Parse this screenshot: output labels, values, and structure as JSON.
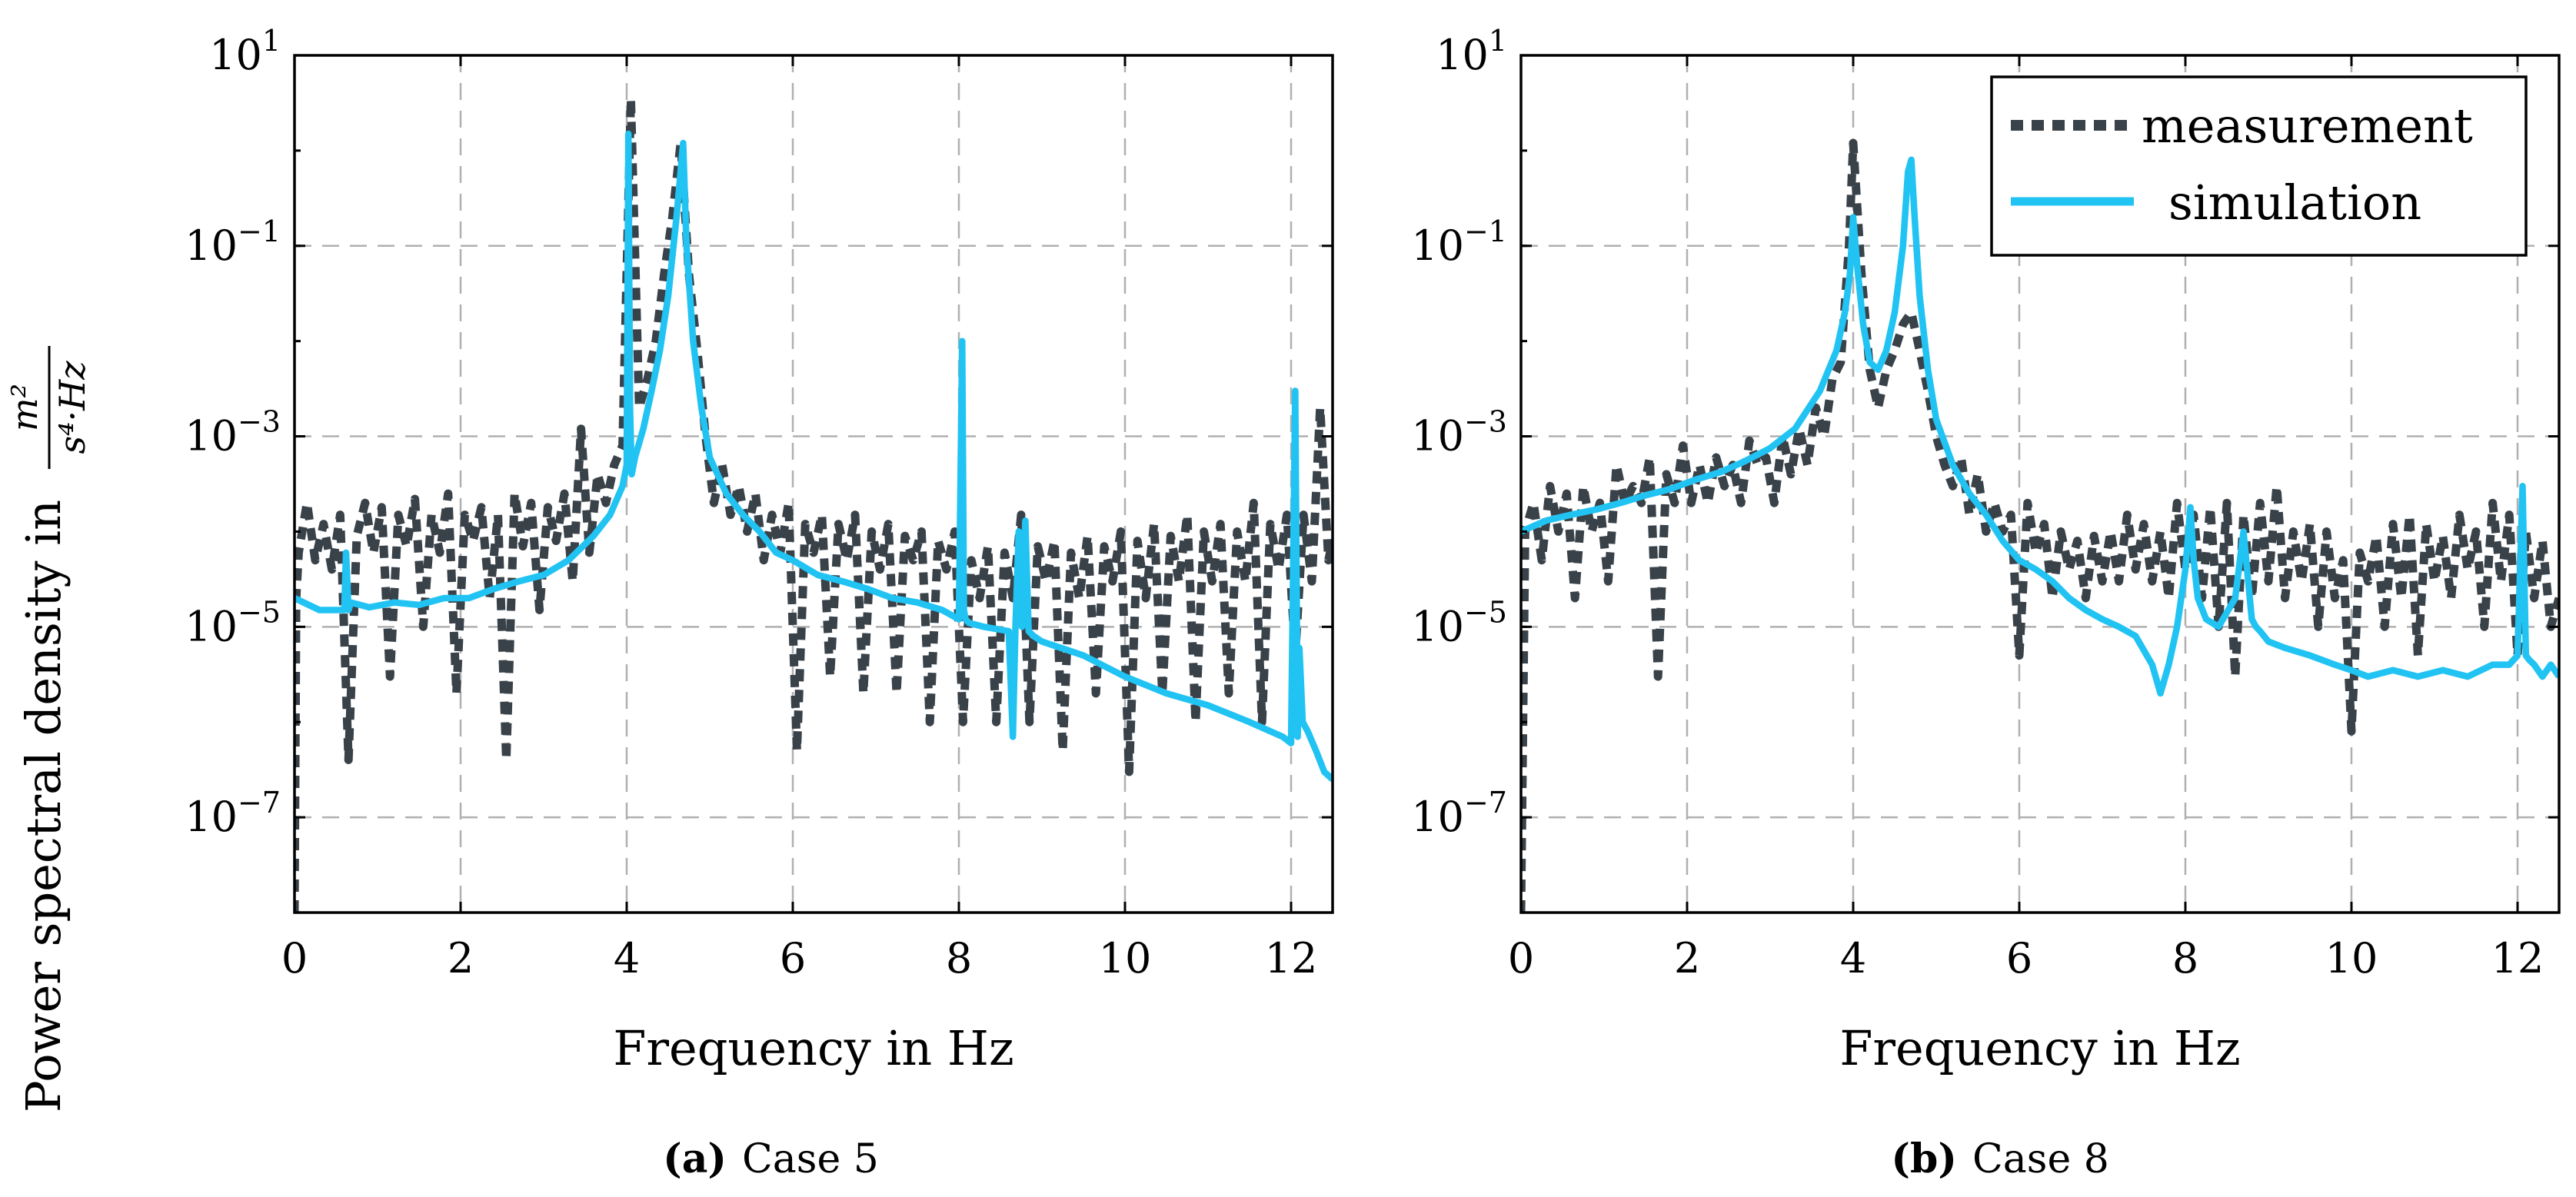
{
  "figure": {
    "ylabel": "Power spectral density in",
    "ylabel_unit_num": "m²",
    "ylabel_unit_den": "s⁴·Hz"
  },
  "legend": {
    "items": [
      {
        "label": "measurement",
        "color": "#394149",
        "style": "dotted"
      },
      {
        "label": "simulation",
        "color": "#21c3f3",
        "style": "solid"
      }
    ]
  },
  "chart_data": [
    {
      "type": "line",
      "panel": "a",
      "caption_label": "(a)",
      "caption_text": "Case 5",
      "xlabel": "Frequency in Hz",
      "ylabel": "Power spectral density in m²/(s⁴·Hz)",
      "xlim": [
        0,
        12.5
      ],
      "ylim": [
        1e-08,
        10
      ],
      "yscale": "log",
      "xticks": [
        0,
        2,
        4,
        6,
        8,
        10,
        12
      ],
      "yticks": [
        {
          "value": 10,
          "base": "10",
          "exp": "1"
        },
        {
          "value": 0.1,
          "base": "10",
          "exp": "−1"
        },
        {
          "value": 0.001,
          "base": "10",
          "exp": "−3"
        },
        {
          "value": 1e-05,
          "base": "10",
          "exp": "−5"
        },
        {
          "value": 1e-07,
          "base": "10",
          "exp": "−7"
        }
      ],
      "grid": true,
      "series": [
        {
          "name": "measurement",
          "color": "#394149",
          "x": [
            0,
            0.02,
            0.05,
            0.15,
            0.25,
            0.35,
            0.45,
            0.55,
            0.65,
            0.75,
            0.85,
            0.95,
            1.05,
            1.15,
            1.25,
            1.35,
            1.45,
            1.55,
            1.65,
            1.75,
            1.85,
            1.95,
            2.05,
            2.15,
            2.25,
            2.35,
            2.45,
            2.55,
            2.65,
            2.75,
            2.85,
            2.95,
            3.05,
            3.15,
            3.25,
            3.35,
            3.45,
            3.55,
            3.65,
            3.75,
            3.85,
            3.95,
            4.05,
            4.15,
            4.25,
            4.35,
            4.45,
            4.55,
            4.65,
            4.75,
            4.85,
            4.95,
            5.05,
            5.15,
            5.25,
            5.35,
            5.45,
            5.55,
            5.65,
            5.75,
            5.85,
            5.95,
            6.05,
            6.15,
            6.25,
            6.35,
            6.45,
            6.55,
            6.65,
            6.75,
            6.85,
            6.95,
            7.05,
            7.15,
            7.25,
            7.35,
            7.45,
            7.55,
            7.65,
            7.75,
            7.85,
            7.95,
            8.05,
            8.15,
            8.25,
            8.35,
            8.45,
            8.55,
            8.65,
            8.75,
            8.85,
            8.95,
            9.05,
            9.15,
            9.25,
            9.35,
            9.45,
            9.55,
            9.65,
            9.75,
            9.85,
            9.95,
            10.05,
            10.15,
            10.25,
            10.35,
            10.45,
            10.55,
            10.65,
            10.75,
            10.85,
            10.95,
            11.05,
            11.15,
            11.25,
            11.35,
            11.45,
            11.55,
            11.65,
            11.75,
            11.85,
            11.95,
            12.05,
            12.15,
            12.25,
            12.35,
            12.45,
            12.5
          ],
          "y": [
            1e-08,
            2e-05,
            6e-05,
            0.0002,
            5e-05,
            0.00012,
            4e-05,
            0.00015,
            4e-07,
            9e-05,
            0.0002,
            6e-05,
            0.00018,
            3e-06,
            0.00015,
            7e-05,
            0.00022,
            1e-05,
            0.00015,
            6e-05,
            0.00025,
            2e-06,
            0.00015,
            8e-05,
            0.00018,
            2e-05,
            0.00015,
            4e-07,
            0.00025,
            7e-05,
            0.0002,
            1.5e-05,
            0.00018,
            8e-05,
            0.00025,
            3e-05,
            0.0012,
            6e-05,
            0.0004,
            0.0002,
            0.0005,
            0.0008,
            3.5,
            0.002,
            0.004,
            0.01,
            0.05,
            0.2,
            1.2,
            0.05,
            0.008,
            0.001,
            0.0002,
            0.0005,
            0.00015,
            0.0003,
            0.0001,
            0.00025,
            5e-05,
            0.00015,
            6e-05,
            0.0002,
            5e-07,
            0.00012,
            6e-05,
            0.00015,
            3e-06,
            0.00012,
            5e-05,
            0.00015,
            2e-06,
            0.0001,
            4e-05,
            0.00012,
            2e-06,
            9e-05,
            5e-05,
            0.0001,
            1e-06,
            8e-05,
            4e-05,
            0.0001,
            1e-06,
            5e-05,
            2e-05,
            7e-05,
            1e-06,
            6e-05,
            2e-05,
            0.00015,
            1e-06,
            7e-05,
            3e-05,
            8e-05,
            5e-07,
            6e-05,
            2e-05,
            9e-05,
            2e-06,
            7e-05,
            3e-05,
            0.0001,
            3e-07,
            8e-05,
            2e-05,
            0.00012,
            2e-06,
            9e-05,
            3e-05,
            0.00015,
            1e-06,
            0.0001,
            3e-05,
            0.00012,
            2e-06,
            0.0001,
            3e-05,
            0.0002,
            1e-06,
            0.00012,
            4e-05,
            0.00015,
            5e-06,
            0.00015,
            3e-05,
            0.002,
            5e-05,
            8e-05
          ]
        },
        {
          "name": "simulation",
          "color": "#21c3f3",
          "x": [
            0,
            0.3,
            0.6,
            0.62,
            0.65,
            0.68,
            0.9,
            1.2,
            1.5,
            1.8,
            2.1,
            2.4,
            2.7,
            3.0,
            3.3,
            3.6,
            3.8,
            3.95,
            4.0,
            4.02,
            4.04,
            4.06,
            4.1,
            4.2,
            4.3,
            4.4,
            4.5,
            4.6,
            4.68,
            4.72,
            4.8,
            4.9,
            5.0,
            5.2,
            5.4,
            5.6,
            5.8,
            6.0,
            6.3,
            6.6,
            6.9,
            7.2,
            7.5,
            7.8,
            8.0,
            8.04,
            8.06,
            8.08,
            8.12,
            8.3,
            8.6,
            8.65,
            8.68,
            8.72,
            8.76,
            8.8,
            8.84,
            8.9,
            9.0,
            9.5,
            10.0,
            10.5,
            11.0,
            11.5,
            11.9,
            12.0,
            12.05,
            12.08,
            12.1,
            12.14,
            12.2,
            12.3,
            12.4,
            12.5
          ],
          "y": [
            2e-05,
            1.5e-05,
            1.5e-05,
            6e-05,
            1.5e-05,
            1.8e-05,
            1.6e-05,
            1.8e-05,
            1.7e-05,
            2e-05,
            2e-05,
            2.5e-05,
            3e-05,
            3.5e-05,
            5e-05,
            9e-05,
            0.00015,
            0.0003,
            0.0005,
            1.5,
            0.002,
            0.0004,
            0.0006,
            0.0012,
            0.003,
            0.008,
            0.03,
            0.2,
            1.2,
            0.1,
            0.01,
            0.002,
            0.0006,
            0.00025,
            0.00015,
            0.0001,
            6e-05,
            5e-05,
            3.5e-05,
            3e-05,
            2.5e-05,
            2e-05,
            1.8e-05,
            1.5e-05,
            1.2e-05,
            0.01,
            1.5e-05,
            1.2e-05,
            1.1e-05,
            1e-05,
            9e-06,
            7e-07,
            9e-06,
            0.0001,
            1e-05,
            0.00013,
            9e-06,
            8e-06,
            7e-06,
            5e-06,
            3e-06,
            2e-06,
            1.5e-06,
            1e-06,
            7e-07,
            6e-07,
            0.003,
            7e-07,
            6e-06,
            1e-06,
            8e-07,
            5e-07,
            3e-07,
            2.5e-07
          ]
        }
      ]
    },
    {
      "type": "line",
      "panel": "b",
      "caption_label": "(b)",
      "caption_text": "Case 8",
      "xlabel": "Frequency in Hz",
      "ylabel": "",
      "xlim": [
        0,
        12.5
      ],
      "ylim": [
        1e-08,
        10
      ],
      "yscale": "log",
      "xticks": [
        0,
        2,
        4,
        6,
        8,
        10,
        12
      ],
      "yticks": [
        {
          "value": 10,
          "base": "10",
          "exp": "1"
        },
        {
          "value": 0.1,
          "base": "10",
          "exp": "−1"
        },
        {
          "value": 0.001,
          "base": "10",
          "exp": "−3"
        },
        {
          "value": 1e-05,
          "base": "10",
          "exp": "−5"
        },
        {
          "value": 1e-07,
          "base": "10",
          "exp": "−7"
        }
      ],
      "grid": true,
      "legend_position": "top-right",
      "series": [
        {
          "name": "measurement",
          "color": "#394149",
          "x": [
            0,
            0.05,
            0.15,
            0.25,
            0.35,
            0.45,
            0.55,
            0.65,
            0.75,
            0.85,
            0.95,
            1.05,
            1.15,
            1.25,
            1.35,
            1.45,
            1.55,
            1.65,
            1.75,
            1.85,
            1.95,
            2.05,
            2.15,
            2.25,
            2.35,
            2.45,
            2.55,
            2.65,
            2.75,
            2.85,
            2.95,
            3.05,
            3.15,
            3.25,
            3.35,
            3.45,
            3.55,
            3.65,
            3.75,
            3.85,
            3.95,
            4.0,
            4.1,
            4.2,
            4.3,
            4.4,
            4.5,
            4.6,
            4.7,
            4.8,
            4.9,
            5.0,
            5.1,
            5.2,
            5.3,
            5.4,
            5.5,
            5.6,
            5.7,
            5.8,
            5.9,
            6.0,
            6.1,
            6.2,
            6.3,
            6.4,
            6.5,
            6.6,
            6.7,
            6.8,
            6.9,
            7.0,
            7.1,
            7.2,
            7.3,
            7.4,
            7.5,
            7.6,
            7.7,
            7.8,
            7.9,
            8.0,
            8.1,
            8.2,
            8.3,
            8.4,
            8.5,
            8.6,
            8.7,
            8.8,
            8.9,
            9.0,
            9.1,
            9.2,
            9.3,
            9.4,
            9.5,
            9.6,
            9.7,
            9.8,
            9.9,
            10.0,
            10.1,
            10.2,
            10.3,
            10.4,
            10.5,
            10.6,
            10.7,
            10.8,
            10.9,
            11.0,
            11.1,
            11.2,
            11.3,
            11.4,
            11.5,
            11.6,
            11.7,
            11.8,
            11.9,
            12.0,
            12.1,
            12.2,
            12.3,
            12.4,
            12.5
          ],
          "y": [
            1e-08,
            0.0001,
            0.0002,
            5e-05,
            0.0003,
            0.0001,
            0.00025,
            2e-05,
            0.0003,
            0.0001,
            0.0002,
            3e-05,
            0.0005,
            0.0002,
            0.0003,
            0.0002,
            0.0006,
            3e-06,
            0.0004,
            0.0002,
            0.0008,
            0.0002,
            0.0005,
            0.0002,
            0.0006,
            0.0003,
            0.0005,
            0.0002,
            0.0009,
            0.0005,
            0.0006,
            0.0002,
            0.001,
            0.0004,
            0.0012,
            0.0005,
            0.002,
            0.001,
            0.004,
            0.006,
            0.1,
            1.2,
            0.05,
            0.005,
            0.002,
            0.005,
            0.008,
            0.015,
            0.02,
            0.008,
            0.003,
            0.001,
            0.0005,
            0.0003,
            0.0006,
            0.00015,
            0.0004,
            0.0001,
            0.0002,
            0.0001,
            0.00015,
            5e-06,
            0.0002,
            6e-05,
            0.00012,
            2e-05,
            0.0001,
            4e-05,
            8e-05,
            2e-05,
            9e-05,
            3e-05,
            0.0001,
            3e-05,
            0.00015,
            4e-05,
            0.00012,
            3e-05,
            0.0001,
            2e-05,
            0.0002,
            4e-05,
            0.00015,
            2e-05,
            0.00018,
            1e-05,
            0.0002,
            3e-06,
            0.00015,
            2e-05,
            0.0002,
            3e-05,
            0.0003,
            2e-05,
            0.0001,
            3e-05,
            0.00012,
            1e-05,
            0.0001,
            2e-05,
            5e-05,
            8e-07,
            6e-05,
            3e-05,
            9e-05,
            1e-05,
            0.00012,
            2e-05,
            0.00015,
            5e-06,
            0.00012,
            3e-05,
            9e-05,
            2e-05,
            0.00015,
            4e-05,
            0.0001,
            1e-05,
            0.0002,
            3e-05,
            0.00015,
            5e-06,
            0.0001,
            2e-05,
            8e-05,
            1e-05,
            2e-05
          ]
        },
        {
          "name": "simulation",
          "color": "#21c3f3",
          "x": [
            0,
            0.3,
            0.6,
            0.9,
            1.2,
            1.5,
            1.8,
            2.1,
            2.4,
            2.7,
            3.0,
            3.3,
            3.6,
            3.8,
            3.9,
            3.96,
            4.0,
            4.05,
            4.12,
            4.2,
            4.3,
            4.4,
            4.5,
            4.6,
            4.66,
            4.7,
            4.74,
            4.8,
            4.9,
            5.0,
            5.2,
            5.4,
            5.6,
            5.8,
            6.0,
            6.2,
            6.4,
            6.6,
            6.8,
            7.0,
            7.2,
            7.4,
            7.6,
            7.7,
            7.8,
            7.9,
            8.0,
            8.06,
            8.1,
            8.15,
            8.25,
            8.4,
            8.6,
            8.7,
            8.8,
            8.85,
            8.9,
            9.0,
            9.2,
            9.5,
            9.8,
            10.0,
            10.2,
            10.5,
            10.8,
            11.1,
            11.4,
            11.7,
            11.9,
            12.0,
            12.06,
            12.1,
            12.14,
            12.2,
            12.3,
            12.4,
            12.5
          ],
          "y": [
            0.0001,
            0.00013,
            0.00015,
            0.00017,
            0.0002,
            0.00024,
            0.00028,
            0.00035,
            0.00042,
            0.00055,
            0.00075,
            0.0012,
            0.003,
            0.008,
            0.02,
            0.05,
            0.2,
            0.06,
            0.015,
            0.006,
            0.005,
            0.008,
            0.02,
            0.1,
            0.6,
            0.8,
            0.2,
            0.03,
            0.005,
            0.0015,
            0.0005,
            0.00025,
            0.00015,
            8e-05,
            5e-05,
            4e-05,
            3e-05,
            2e-05,
            1.5e-05,
            1.2e-05,
            1e-05,
            8e-06,
            4e-06,
            2e-06,
            4e-06,
            1e-05,
            4e-05,
            0.00018,
            5e-05,
            2e-05,
            1.2e-05,
            1e-05,
            2e-05,
            0.0001,
            1.2e-05,
            1e-05,
            9e-06,
            7e-06,
            6e-06,
            5e-06,
            4e-06,
            3.5e-06,
            3e-06,
            3.5e-06,
            3e-06,
            3.5e-06,
            3e-06,
            4e-06,
            4e-06,
            5e-06,
            0.0003,
            5e-06,
            4.5e-06,
            4e-06,
            3e-06,
            4e-06,
            3e-06
          ]
        }
      ]
    }
  ]
}
